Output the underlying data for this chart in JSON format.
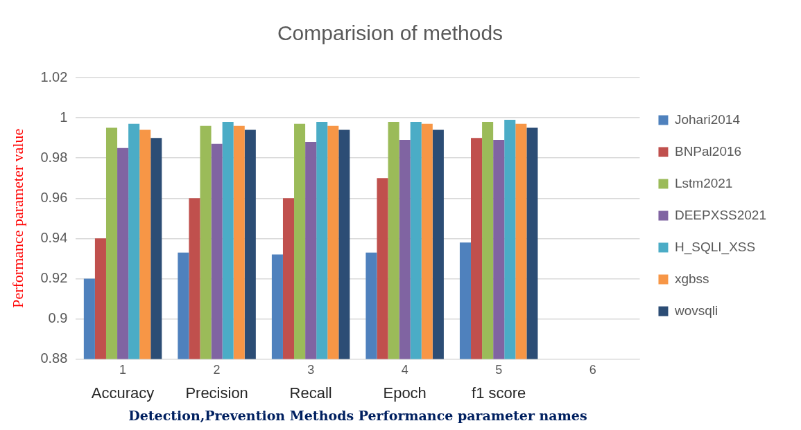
{
  "chart_data": {
    "type": "bar",
    "title": "Comparision of methods",
    "xlabel": "Detection,Prevention Methods Performance parameter names",
    "ylabel": "Performance parameter value",
    "categories": [
      "1",
      "2",
      "3",
      "4",
      "5",
      "6"
    ],
    "series": [
      {
        "name": "Johari2014",
        "color": "#4f81bd",
        "values": [
          0.92,
          0.933,
          0.932,
          0.933,
          0.938,
          null
        ]
      },
      {
        "name": "BNPal2016",
        "color": "#c0504d",
        "values": [
          0.94,
          0.96,
          0.96,
          0.97,
          0.99,
          null
        ]
      },
      {
        "name": "Lstm2021",
        "color": "#9bbb59",
        "values": [
          0.995,
          0.996,
          0.997,
          0.998,
          0.998,
          null
        ]
      },
      {
        "name": "DEEPXSS2021",
        "color": "#8064a2",
        "values": [
          0.985,
          0.987,
          0.988,
          0.989,
          0.989,
          null
        ]
      },
      {
        "name": "H_SQLI_XSS",
        "color": "#4bacc6",
        "values": [
          0.997,
          0.998,
          0.998,
          0.998,
          0.999,
          null
        ]
      },
      {
        "name": "xgbss",
        "color": "#f79646",
        "values": [
          0.994,
          0.996,
          0.996,
          0.997,
          0.997,
          null
        ]
      },
      {
        "name": "wovsqli",
        "color": "#2c4d75",
        "values": [
          0.99,
          0.994,
          0.994,
          0.994,
          0.995,
          null
        ]
      }
    ],
    "ylim": [
      0.88,
      1.02
    ],
    "yticks": [
      0.88,
      0.9,
      0.92,
      0.94,
      0.96,
      0.98,
      1,
      1.02
    ],
    "grid": "y",
    "legend": "right",
    "annotations": [
      "Accuracy",
      "Precision",
      "Recall",
      "Epoch",
      "f1 score"
    ]
  }
}
